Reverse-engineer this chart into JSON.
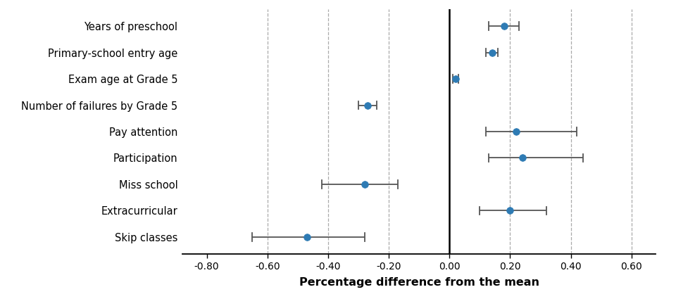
{
  "labels": [
    "Years of preschool",
    "Primary-school entry age",
    "Exam age at Grade 5",
    "Number of failures by Grade 5",
    "Pay attention",
    "Participation",
    "Miss school",
    "Extracurricular",
    "Skip classes"
  ],
  "estimates": [
    0.18,
    0.14,
    0.02,
    -0.27,
    0.22,
    0.24,
    -0.28,
    0.2,
    -0.47
  ],
  "ci_low": [
    0.13,
    0.12,
    0.01,
    -0.3,
    0.12,
    0.13,
    -0.42,
    0.1,
    -0.65
  ],
  "ci_high": [
    0.23,
    0.16,
    0.03,
    -0.24,
    0.42,
    0.44,
    -0.17,
    0.32,
    -0.28
  ],
  "dot_color": "#2e7bb4",
  "line_color": "#555555",
  "xlabel": "Percentage difference from the mean",
  "xlim": [
    -0.88,
    0.68
  ],
  "xticks": [
    -0.8,
    -0.6,
    -0.4,
    -0.2,
    0.0,
    0.2,
    0.4,
    0.6
  ],
  "xtick_labels": [
    "-0.80",
    "-0.60",
    "-0.40",
    "-0.20",
    "0.00",
    "0.20",
    "0.40",
    "0.60"
  ],
  "vline_x": 0.0,
  "dashed_lines": [
    -0.6,
    -0.4,
    -0.2,
    0.2,
    0.4,
    0.6
  ],
  "background_color": "#ffffff",
  "figsize": [
    9.6,
    4.25
  ],
  "dpi": 100
}
